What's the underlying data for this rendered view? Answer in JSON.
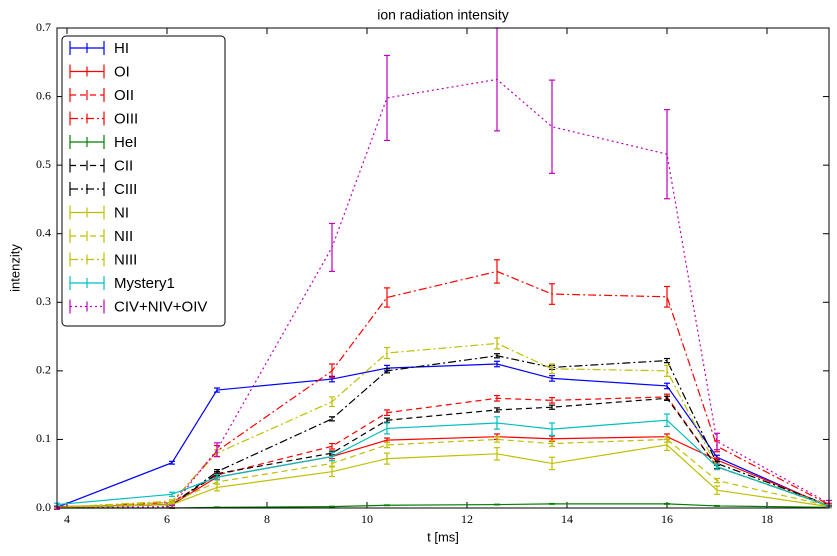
{
  "chart_data": {
    "type": "errorbar-line",
    "title": "ion radiation intensity",
    "x_label": "t [ms]",
    "y_label": "intenzity",
    "x": [
      3.8,
      6.1,
      7.0,
      9.3,
      10.4,
      12.6,
      13.7,
      16.0,
      17.0,
      19.24
    ],
    "xlim": [
      3.8,
      19.24
    ],
    "xticks": [
      4,
      6,
      8,
      10,
      12,
      14,
      16,
      18
    ],
    "ylim": [
      0,
      0.7
    ],
    "yticks": [
      {
        "value": 0,
        "label": "0.0"
      },
      0.1,
      0.2,
      0.3,
      0.4,
      0.5,
      0.6,
      0.7
    ],
    "legend": "upper left",
    "series": [
      {
        "name": "HI",
        "color": "#0000ff",
        "linestyle": "solid",
        "values": [
          0.001,
          0.066,
          0.172,
          0.188,
          0.204,
          0.21,
          0.189,
          0.178,
          0.074,
          0.002
        ],
        "errors": [
          0.001,
          0.002,
          0.003,
          0.004,
          0.004,
          0.004,
          0.004,
          0.004,
          0.003,
          0.001
        ]
      },
      {
        "name": "OI",
        "color": "#ff0000",
        "linestyle": "solid",
        "values": [
          0.002,
          0.005,
          0.045,
          0.075,
          0.099,
          0.104,
          0.101,
          0.104,
          0.07,
          0.003
        ],
        "errors": [
          0.001,
          0.001,
          0.003,
          0.003,
          0.003,
          0.004,
          0.004,
          0.004,
          0.003,
          0.001
        ]
      },
      {
        "name": "OII",
        "color": "#ff0000",
        "linestyle": "dashed",
        "values": [
          0.001,
          0.008,
          0.048,
          0.09,
          0.139,
          0.16,
          0.157,
          0.162,
          0.06,
          0.003
        ],
        "errors": [
          0.001,
          0.001,
          0.003,
          0.004,
          0.004,
          0.004,
          0.004,
          0.004,
          0.003,
          0.001
        ]
      },
      {
        "name": "OIII",
        "color": "#ff0000",
        "linestyle": "dashdot",
        "values": [
          0.001,
          0.008,
          0.083,
          0.2,
          0.307,
          0.345,
          0.312,
          0.308,
          0.09,
          0.005
        ],
        "errors": [
          0.001,
          0.002,
          0.008,
          0.01,
          0.014,
          0.017,
          0.015,
          0.015,
          0.008,
          0.002
        ]
      },
      {
        "name": "HeI",
        "color": "#008000",
        "linestyle": "solid",
        "values": [
          0,
          0,
          0.001,
          0.002,
          0.004,
          0.005,
          0.006,
          0.006,
          0.003,
          0.001
        ],
        "errors": [
          0.0005,
          0.0005,
          0.0005,
          0.0005,
          0.0005,
          0.0005,
          0.0005,
          0.0005,
          0.0005,
          0.0005
        ]
      },
      {
        "name": "CII",
        "color": "#000000",
        "linestyle": "dashed",
        "values": [
          0.001,
          0.005,
          0.05,
          0.08,
          0.128,
          0.143,
          0.147,
          0.16,
          0.06,
          0.003
        ],
        "errors": [
          0.001,
          0.001,
          0.003,
          0.003,
          0.003,
          0.003,
          0.003,
          0.003,
          0.003,
          0.001
        ]
      },
      {
        "name": "CIII",
        "color": "#000000",
        "linestyle": "dashdot",
        "values": [
          0.001,
          0.005,
          0.053,
          0.13,
          0.2,
          0.222,
          0.205,
          0.215,
          0.065,
          0.004
        ],
        "errors": [
          0.001,
          0.001,
          0.003,
          0.003,
          0.003,
          0.003,
          0.003,
          0.003,
          0.003,
          0.001
        ]
      },
      {
        "name": "NI",
        "color": "#bfbf00",
        "linestyle": "solid",
        "values": [
          0.001,
          0.005,
          0.03,
          0.053,
          0.072,
          0.079,
          0.065,
          0.092,
          0.026,
          0.002
        ],
        "errors": [
          0.001,
          0.002,
          0.005,
          0.007,
          0.008,
          0.009,
          0.009,
          0.008,
          0.006,
          0.001
        ]
      },
      {
        "name": "NII",
        "color": "#bfbf00",
        "linestyle": "dashed",
        "values": [
          0.001,
          0.008,
          0.038,
          0.065,
          0.092,
          0.1,
          0.094,
          0.1,
          0.04,
          0.003
        ],
        "errors": [
          0.001,
          0.002,
          0.003,
          0.004,
          0.004,
          0.004,
          0.004,
          0.004,
          0.003,
          0.001
        ]
      },
      {
        "name": "NIII",
        "color": "#bfbf00",
        "linestyle": "dashdot",
        "values": [
          0.001,
          0.01,
          0.08,
          0.155,
          0.226,
          0.24,
          0.203,
          0.2,
          0.06,
          0.004
        ],
        "errors": [
          0.001,
          0.002,
          0.005,
          0.007,
          0.008,
          0.008,
          0.007,
          0.008,
          0.004,
          0.001
        ]
      },
      {
        "name": "Mystery1",
        "color": "#00bfbf",
        "linestyle": "solid",
        "values": [
          0.005,
          0.02,
          0.045,
          0.075,
          0.116,
          0.124,
          0.115,
          0.128,
          0.06,
          0.003
        ],
        "errors": [
          0.002,
          0.003,
          0.004,
          0.006,
          0.008,
          0.009,
          0.009,
          0.009,
          0.004,
          0.001
        ]
      },
      {
        "name": "CIV+NIV+OIV",
        "color": "#bf00bf",
        "linestyle": "dotted",
        "values": [
          0,
          0.002,
          0.085,
          0.38,
          0.598,
          0.625,
          0.556,
          0.516,
          0.097,
          0.007
        ],
        "errors": [
          0.002,
          0.002,
          0.01,
          0.035,
          0.062,
          0.075,
          0.068,
          0.065,
          0.012,
          0.004
        ]
      }
    ]
  }
}
